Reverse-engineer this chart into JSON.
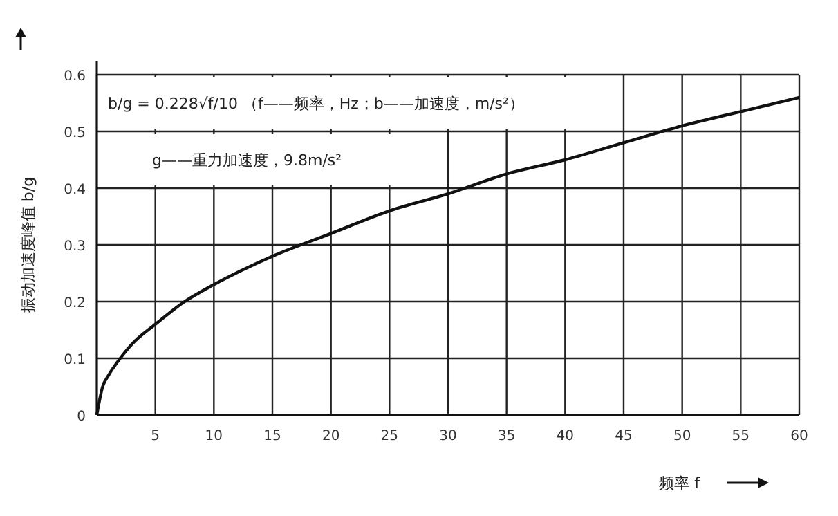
{
  "chart_data": {
    "type": "line",
    "xlabel": "频率 f",
    "ylabel": "振动加速度峰值 b/g",
    "annotations": [
      "b/g = 0.228√f/10  （f——频率，Hz；b——加速度，m/s²）",
      "g——重力加速度，9.8m/s²"
    ],
    "x": [
      0,
      0.5,
      1,
      2,
      3,
      5,
      7.5,
      10,
      15,
      20,
      25,
      30,
      35,
      40,
      45,
      50,
      55,
      60
    ],
    "series": [
      {
        "color": "#111111",
        "values": [
          0,
          0.05,
          0.07,
          0.1,
          0.125,
          0.16,
          0.2,
          0.23,
          0.28,
          0.32,
          0.36,
          0.39,
          0.425,
          0.45,
          0.48,
          0.51,
          0.535,
          0.56
        ]
      }
    ],
    "xlim": [
      0,
      60
    ],
    "ylim": [
      0,
      0.6
    ],
    "xticks": [
      {
        "value": 0,
        "label": null
      },
      5,
      10,
      15,
      20,
      25,
      30,
      35,
      40,
      45,
      50,
      55,
      60
    ],
    "yticks": [
      0,
      0.1,
      0.2,
      0.3,
      0.4,
      0.5,
      0.6
    ],
    "grid": true,
    "line_style": "solid"
  }
}
